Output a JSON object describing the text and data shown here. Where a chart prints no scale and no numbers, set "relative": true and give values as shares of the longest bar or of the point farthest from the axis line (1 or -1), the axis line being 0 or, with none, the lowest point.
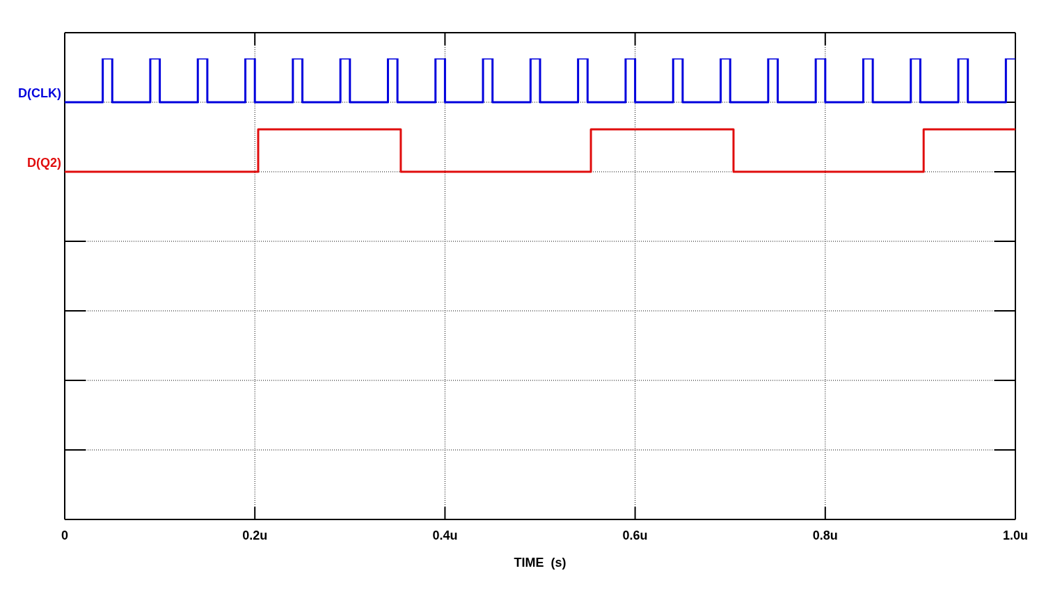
{
  "chart_data": {
    "type": "step",
    "xlabel": "TIME  (s)",
    "relative": true,
    "grid": true,
    "xlim": [
      0,
      1
    ],
    "xticks": [
      0,
      {
        "value": 0.2,
        "label": "0.2u"
      },
      {
        "value": 0.4,
        "label": "0.4u"
      },
      {
        "value": 0.6,
        "label": "0.6u"
      },
      {
        "value": 0.8,
        "label": "0.8u"
      },
      {
        "value": 1,
        "label": "1.0u"
      }
    ],
    "series": [
      {
        "name": "D(CLK)",
        "color": "#0000dd",
        "x": [
          0,
          0.04,
          0.05,
          0.09,
          0.1,
          0.14,
          0.15,
          0.19,
          0.2,
          0.24,
          0.25,
          0.29,
          0.3,
          0.34,
          0.35,
          0.39,
          0.4,
          0.44,
          0.45,
          0.49,
          0.5,
          0.54,
          0.55,
          0.59,
          0.6,
          0.64,
          0.65,
          0.69,
          0.7,
          0.74,
          0.75,
          0.79,
          0.8,
          0.84,
          0.85,
          0.89,
          0.9,
          0.94,
          0.95,
          0.99,
          1
        ],
        "values": [
          0.905,
          1,
          0.905,
          1,
          0.905,
          1,
          0.905,
          1,
          0.905,
          1,
          0.905,
          1,
          0.905,
          1,
          0.905,
          1,
          0.905,
          1,
          0.905,
          1,
          0.905,
          1,
          0.905,
          1,
          0.905,
          1,
          0.905,
          1,
          0.905,
          1,
          0.905,
          1,
          0.905,
          1,
          0.905,
          1,
          0.905,
          1,
          0.905,
          1,
          1
        ]
      },
      {
        "name": "D(Q2)",
        "color": "#e00d0d",
        "x": [
          0,
          0.2035,
          0.3535,
          0.5535,
          0.7035,
          0.9035,
          1
        ],
        "values": [
          0.754,
          0.846,
          0.754,
          0.846,
          0.754,
          0.846,
          0.846
        ]
      }
    ]
  }
}
